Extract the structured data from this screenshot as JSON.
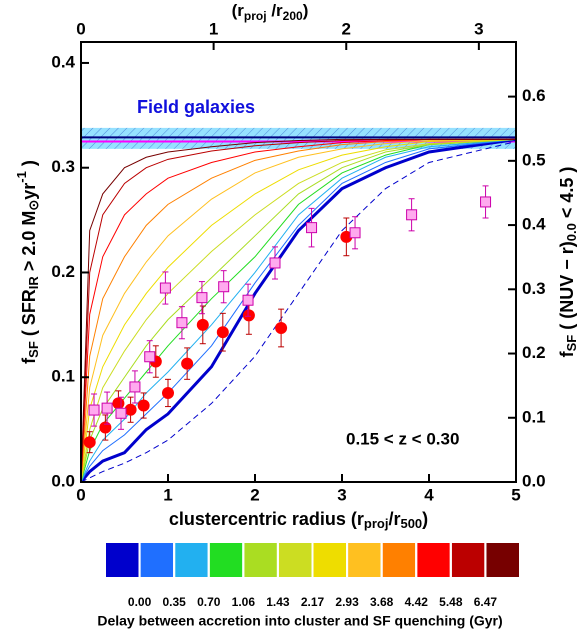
{
  "chart_data": [
    {
      "type": "line",
      "xlabel": [
        {
          "text": "clustercentric radius (r"
        },
        {
          "text": "proj",
          "sub": true
        },
        {
          "text": "/r"
        },
        {
          "text": "500",
          "sub": true
        },
        {
          "text": ")"
        }
      ],
      "x2label": [
        {
          "text": "(r"
        },
        {
          "text": "proj",
          "sub": true
        },
        {
          "text": " /r"
        },
        {
          "text": "200",
          "sub": true
        },
        {
          "text": ")"
        }
      ],
      "ylabel": [
        {
          "text": "f"
        },
        {
          "text": "SF",
          "sub": true
        },
        {
          "text": " ( SFR"
        },
        {
          "text": "IR",
          "sub": true
        },
        {
          "text": " > 2.0 M"
        },
        {
          "text": "⊙",
          "sub": true
        },
        {
          "text": "yr"
        },
        {
          "text": "-1",
          "sup": true
        },
        {
          "text": " )"
        }
      ],
      "y2label": [
        {
          "text": "f"
        },
        {
          "text": "SF",
          "sub": true
        },
        {
          "text": " ( (NUV − r)"
        },
        {
          "text": "0.0",
          "sub": true
        },
        {
          "text": " < 4.5 )"
        }
      ],
      "annotations": [
        "Field galaxies",
        "0.15 < z < 0.30"
      ],
      "xlim": [
        0,
        5
      ],
      "xticks": [
        0,
        1,
        2,
        3,
        4,
        5
      ],
      "x2lim": [
        0,
        3.28
      ],
      "x2ticks": [
        0,
        1,
        2,
        3
      ],
      "ylim": [
        0,
        0.42
      ],
      "yticks": [
        {
          "value": 0,
          "label": "0.0"
        },
        0.1,
        0.2,
        0.3,
        0.4
      ],
      "y2lim": [
        0,
        0.685
      ],
      "y2ticks": [
        {
          "value": 0,
          "label": "0.0"
        },
        0.1,
        0.2,
        0.3,
        0.4,
        0.5,
        0.6
      ],
      "band": {
        "lower": 0.318,
        "upper": 0.338,
        "color": "#40c8ff"
      },
      "hlines": [
        {
          "value": 0.329,
          "color": "#000080"
        },
        {
          "value": 0.325,
          "color": "#ff00ff"
        }
      ],
      "x": [
        0,
        0.1,
        0.25,
        0.5,
        0.75,
        1,
        1.5,
        2,
        2.5,
        3,
        3.5,
        4,
        5
      ],
      "series": [
        {
          "color": "#0000cc",
          "width": 3,
          "values": [
            0,
            0.01,
            0.02,
            0.028,
            0.05,
            0.065,
            0.11,
            0.18,
            0.24,
            0.28,
            0.3,
            0.315,
            0.327
          ]
        },
        {
          "color": "#0000cc",
          "dash": true,
          "values": [
            0,
            0.004,
            0.01,
            0.018,
            0.028,
            0.04,
            0.075,
            0.12,
            0.18,
            0.24,
            0.28,
            0.305,
            0.325
          ]
        },
        {
          "color": "#1f6fff",
          "values": [
            0,
            0.015,
            0.03,
            0.045,
            0.065,
            0.085,
            0.13,
            0.19,
            0.245,
            0.285,
            0.305,
            0.318,
            0.327
          ]
        },
        {
          "color": "#22b0f0",
          "values": [
            0,
            0.02,
            0.04,
            0.06,
            0.085,
            0.105,
            0.15,
            0.2,
            0.255,
            0.29,
            0.31,
            0.32,
            0.327
          ]
        },
        {
          "color": "#22dd22",
          "values": [
            0,
            0.03,
            0.055,
            0.08,
            0.105,
            0.13,
            0.175,
            0.215,
            0.265,
            0.295,
            0.312,
            0.322,
            0.327
          ]
        },
        {
          "color": "#aadd22",
          "values": [
            0,
            0.04,
            0.07,
            0.1,
            0.13,
            0.155,
            0.195,
            0.235,
            0.275,
            0.3,
            0.315,
            0.322,
            0.327
          ]
        },
        {
          "color": "#ccdd22",
          "values": [
            0,
            0.05,
            0.09,
            0.125,
            0.155,
            0.18,
            0.22,
            0.255,
            0.285,
            0.305,
            0.317,
            0.323,
            0.327
          ]
        },
        {
          "color": "#eedd00",
          "values": [
            0,
            0.07,
            0.11,
            0.15,
            0.18,
            0.205,
            0.245,
            0.275,
            0.298,
            0.312,
            0.32,
            0.325,
            0.327
          ]
        },
        {
          "color": "#ffc020",
          "values": [
            0,
            0.09,
            0.14,
            0.18,
            0.21,
            0.235,
            0.27,
            0.295,
            0.31,
            0.318,
            0.323,
            0.326,
            0.327
          ]
        },
        {
          "color": "#ff8000",
          "values": [
            0,
            0.12,
            0.175,
            0.215,
            0.245,
            0.265,
            0.29,
            0.307,
            0.316,
            0.322,
            0.325,
            0.327,
            0.327
          ]
        },
        {
          "color": "#ff0000",
          "values": [
            0,
            0.16,
            0.215,
            0.255,
            0.275,
            0.29,
            0.305,
            0.315,
            0.32,
            0.324,
            0.326,
            0.327,
            0.327
          ]
        },
        {
          "color": "#bb0000",
          "values": [
            0,
            0.2,
            0.255,
            0.285,
            0.3,
            0.308,
            0.316,
            0.321,
            0.324,
            0.326,
            0.327,
            0.327,
            0.327
          ]
        },
        {
          "color": "#770000",
          "values": [
            0,
            0.24,
            0.275,
            0.3,
            0.31,
            0.315,
            0.32,
            0.324,
            0.326,
            0.327,
            0.327,
            0.327,
            0.327
          ]
        }
      ],
      "points": [
        {
          "marker": "circle",
          "color": "#ff0000",
          "errcolor": "#bb0000",
          "x": [
            0.1,
            0.28,
            0.43,
            0.57,
            0.72,
            0.86,
            1.0,
            1.22,
            1.4,
            1.63,
            1.93,
            2.3,
            3.05
          ],
          "values": [
            0.038,
            0.052,
            0.075,
            0.069,
            0.073,
            0.115,
            0.085,
            0.113,
            0.15,
            0.143,
            0.159,
            0.147,
            0.234
          ],
          "errors": [
            0.01,
            0.012,
            0.012,
            0.012,
            0.012,
            0.015,
            0.013,
            0.015,
            0.018,
            0.018,
            0.018,
            0.018,
            0.018
          ]
        },
        {
          "marker": "square",
          "color": "#ffaaee",
          "errcolor": "#cc00aa",
          "axis": "y2",
          "x": [
            0.15,
            0.3,
            0.46,
            0.62,
            0.79,
            0.97,
            1.16,
            1.39,
            1.64,
            1.92,
            2.23,
            2.65,
            3.15,
            3.8,
            4.65
          ],
          "values": [
            0.112,
            0.115,
            0.107,
            0.148,
            0.195,
            0.302,
            0.248,
            0.287,
            0.304,
            0.283,
            0.341,
            0.396,
            0.388,
            0.416,
            0.436
          ],
          "errors": [
            0.025,
            0.025,
            0.025,
            0.025,
            0.025,
            0.025,
            0.025,
            0.025,
            0.025,
            0.025,
            0.025,
            0.03,
            0.025,
            0.025,
            0.025
          ]
        }
      ]
    },
    {
      "type": "colorbar",
      "colors": [
        "#0000cc",
        "#1f6fff",
        "#22b0f0",
        "#22dd22",
        "#aadd22",
        "#ccdd22",
        "#eedd00",
        "#ffc020",
        "#ff8000",
        "#ff0000",
        "#bb0000",
        "#770000"
      ],
      "ticks": [
        {
          "value": 0,
          "label": "0.00"
        },
        0.35,
        {
          "value": 0.7,
          "label": "0.70"
        },
        1.06,
        1.43,
        2.17,
        2.93,
        3.68,
        4.42,
        5.48,
        6.47
      ],
      "label": "Delay between accretion into cluster and SF quenching (Gyr)"
    }
  ]
}
